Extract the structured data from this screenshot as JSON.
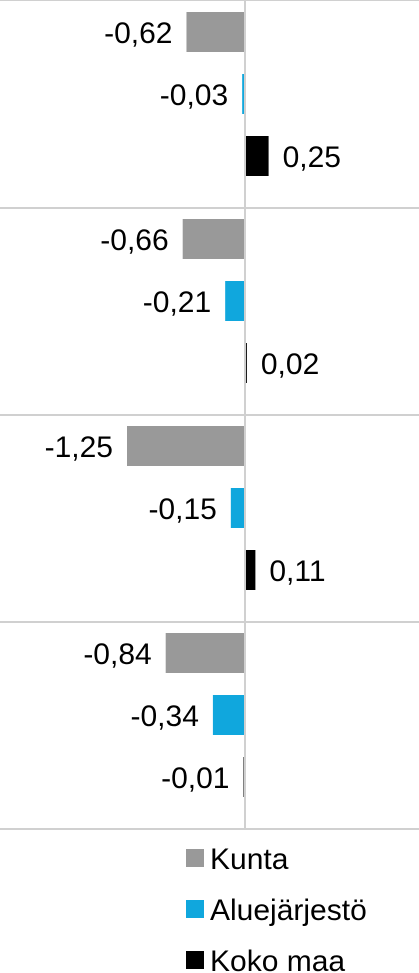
{
  "chart_data": {
    "type": "bar",
    "orientation": "horizontal",
    "categories": [
      "",
      "",
      "",
      ""
    ],
    "series": [
      {
        "name": "Kunta",
        "color": "#999999",
        "values": [
          -0.62,
          -0.66,
          -1.25,
          -0.84
        ],
        "labels": [
          "-0,62",
          "-0,66",
          "-1,25",
          "-0,84"
        ]
      },
      {
        "name": "Aluejärjestö",
        "color": "#10A7DD",
        "values": [
          -0.03,
          -0.21,
          -0.15,
          -0.34
        ],
        "labels": [
          "-0,03",
          "-0,21",
          "-0,15",
          "-0,34"
        ]
      },
      {
        "name": "Koko maa",
        "color": "#000000",
        "values": [
          0.25,
          0.02,
          0.11,
          -0.01
        ],
        "labels": [
          "0,25",
          "0,02",
          "0,11",
          "-0,01"
        ]
      }
    ],
    "legend_position": "bottom-right",
    "grid": false
  }
}
